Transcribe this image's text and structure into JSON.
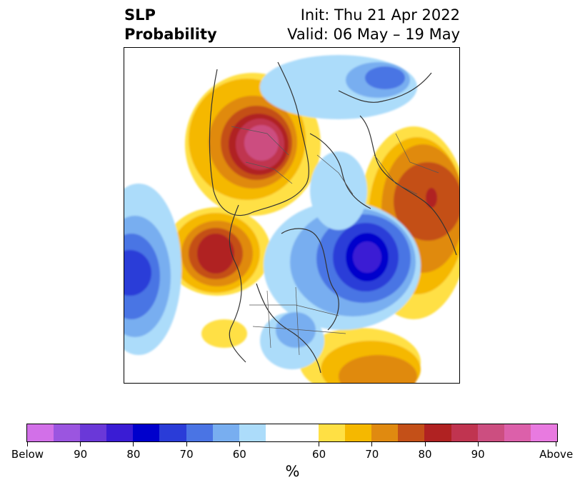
{
  "header": {
    "title_line1": "SLP",
    "title_line2": "Probability",
    "init": "Init: Thu 21 Apr 2022",
    "valid": "Valid: 06 May – 19 May"
  },
  "colorbar": {
    "unit": "%",
    "below_colors": [
      "#d270e8",
      "#9b55e0",
      "#6a38d8",
      "#3a1cd4",
      "#0000cc",
      "#2a3cd8",
      "#4a74e4",
      "#78aef0",
      "#acdcfa"
    ],
    "neutral_color": "#ffffff",
    "above_colors": [
      "#ffe044",
      "#f5b800",
      "#e08a10",
      "#c45018",
      "#b02222",
      "#c03450",
      "#cc4e80",
      "#dc60aa",
      "#e87ae0"
    ],
    "tick_labels": [
      "Below",
      "90",
      "80",
      "70",
      "60",
      "60",
      "70",
      "80",
      "90",
      "Above"
    ]
  }
}
